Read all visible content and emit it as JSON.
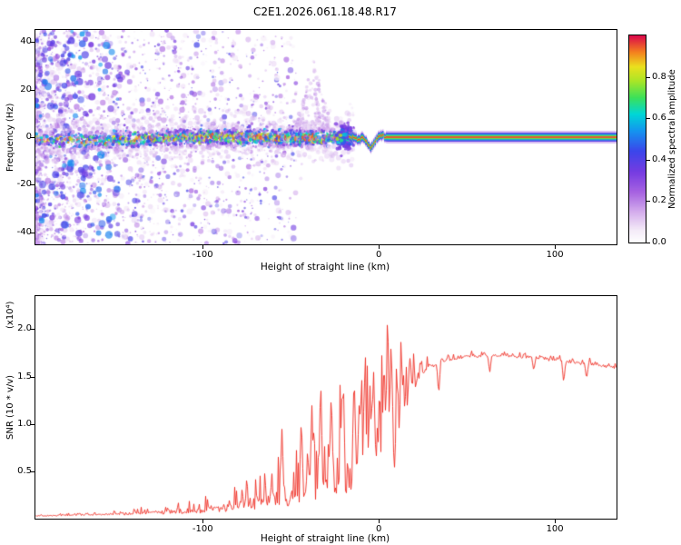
{
  "title": "C2E1.2026.061.18.48.R17",
  "colors": {
    "snr_line": "#ef2e24",
    "axis": "#000000",
    "background": "#ffffff"
  },
  "chart_data": [
    {
      "type": "heatmap",
      "xlabel": "Height of straight line (km)",
      "ylabel": "Frequency (Hz)",
      "xlim": [
        -195,
        135
      ],
      "ylim": [
        -45,
        45
      ],
      "xticks": [
        {
          "v": -100,
          "label": "-100"
        },
        {
          "v": 0,
          "label": "0"
        },
        {
          "v": 100,
          "label": "100"
        }
      ],
      "yticks": [
        {
          "v": 40,
          "label": "40"
        },
        {
          "v": 20,
          "label": "20"
        },
        {
          "v": 0,
          "label": "0"
        },
        {
          "v": -20,
          "label": "-20"
        },
        {
          "v": -40,
          "label": "-40"
        }
      ],
      "colorbar": {
        "label": "Normalized spectral amplitude",
        "range": [
          0,
          1
        ],
        "ticks": [
          {
            "v": 0,
            "label": "0.0"
          },
          {
            "v": 0.2,
            "label": "0.2"
          },
          {
            "v": 0.4,
            "label": "0.4"
          },
          {
            "v": 0.6,
            "label": "0.6"
          },
          {
            "v": 0.8,
            "label": "0.8"
          }
        ]
      },
      "features": {
        "noise_region": "diffuse low-amplitude purple speckle over all frequencies left of about -130 km, thinning toward -60 km",
        "signal_band": "speckled signal band centered near 0 Hz (±5 Hz) from the left edge to about -15 km, amplitudes mostly 0.2-0.9",
        "plume": "faint purple plume rising to about +32 Hz near -38 km",
        "coherent_line": "narrow high-amplitude (≈1.0) horizontal line at 0 Hz from about -5 km to the right edge, with a ≈4 Hz downward dip near -4 km"
      }
    },
    {
      "type": "line",
      "xlabel": "Height of straight line (km)",
      "ylabel": "SNR (10 * v/v)",
      "ylabel_scale": "(x10⁴)",
      "xlim": [
        -195,
        135
      ],
      "ylim": [
        0,
        2.35
      ],
      "xticks": [
        {
          "v": -100,
          "label": "-100"
        },
        {
          "v": 0,
          "label": "0"
        },
        {
          "v": 100,
          "label": "100"
        }
      ],
      "yticks": [
        {
          "v": 0.5,
          "label": "0.5"
        },
        {
          "v": 1,
          "label": "1.0"
        },
        {
          "v": 1.5,
          "label": "1.5"
        },
        {
          "v": 2,
          "label": "2.0"
        }
      ],
      "envelope": [
        [
          -195,
          0.03,
          0.012
        ],
        [
          -175,
          0.038,
          0.018
        ],
        [
          -160,
          0.045,
          0.025
        ],
        [
          -145,
          0.055,
          0.035
        ],
        [
          -130,
          0.07,
          0.05
        ],
        [
          -115,
          0.085,
          0.07
        ],
        [
          -100,
          0.105,
          0.1
        ],
        [
          -90,
          0.13,
          0.14
        ],
        [
          -80,
          0.16,
          0.18
        ],
        [
          -70,
          0.19,
          0.23
        ],
        [
          -60,
          0.23,
          0.3
        ],
        [
          -50,
          0.27,
          0.38
        ],
        [
          -42,
          0.31,
          0.48
        ],
        [
          -35,
          0.37,
          0.58
        ],
        [
          -28,
          0.44,
          0.68
        ],
        [
          -22,
          0.49,
          0.78
        ],
        [
          -16,
          0.54,
          0.88
        ],
        [
          -10,
          0.6,
          0.95
        ],
        [
          -5,
          0.66,
          1.0
        ],
        [
          -1,
          0.72,
          1.05
        ],
        [
          3,
          0.82,
          1.1
        ],
        [
          8,
          0.95,
          0.9
        ],
        [
          12,
          1.15,
          0.55
        ],
        [
          18,
          1.42,
          0.28
        ],
        [
          25,
          1.58,
          0.12
        ],
        [
          35,
          1.67,
          0.05
        ],
        [
          50,
          1.72,
          0.04
        ],
        [
          70,
          1.73,
          0.04
        ],
        [
          90,
          1.7,
          0.045
        ],
        [
          110,
          1.66,
          0.05
        ],
        [
          125,
          1.63,
          0.05
        ],
        [
          135,
          1.6,
          0.05
        ]
      ],
      "spikes": [
        [
          -55,
          0.95
        ],
        [
          -44,
          1.08
        ],
        [
          -38,
          1.2
        ],
        [
          -33,
          1.5
        ],
        [
          -27,
          1.35
        ],
        [
          -21,
          1.28
        ],
        [
          -14,
          1.55
        ],
        [
          -11,
          1.3
        ],
        [
          -8,
          1.5
        ],
        [
          -5,
          1.35
        ],
        [
          -3,
          1.6
        ],
        [
          3,
          1.7
        ],
        [
          5,
          2.33,
          1.0
        ],
        [
          7,
          1.9
        ],
        [
          10,
          1.6
        ],
        [
          13,
          1.45
        ]
      ],
      "down_spikes": [
        [
          9,
          0.5,
          0.8
        ],
        [
          34,
          1.3
        ],
        [
          63,
          1.54
        ],
        [
          88,
          1.56
        ],
        [
          105,
          1.43
        ],
        [
          118,
          1.47
        ]
      ]
    }
  ]
}
